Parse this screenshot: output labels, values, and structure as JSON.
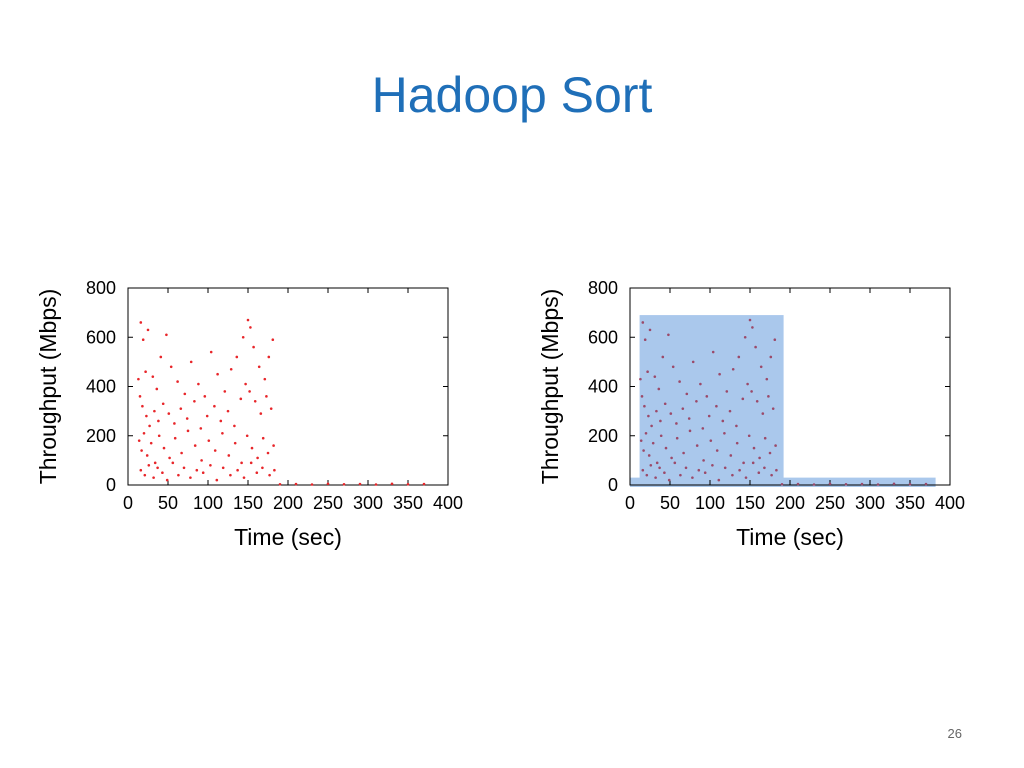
{
  "slide": {
    "title": "Hadoop Sort",
    "page_number": "26"
  },
  "chart_data": [
    {
      "type": "scatter",
      "xlabel": "Time (sec)",
      "ylabel": "Throughput (Mbps)",
      "xlim": [
        0,
        400
      ],
      "ylim": [
        0,
        800
      ],
      "xticks": [
        0,
        50,
        100,
        150,
        200,
        250,
        300,
        350,
        400
      ],
      "yticks": [
        0,
        200,
        400,
        600,
        800
      ],
      "grid": false,
      "series": [
        {
          "color": "#e8262a",
          "points": [
            [
              16,
              660
            ],
            [
              19,
              590
            ],
            [
              22,
              460
            ],
            [
              25,
              630
            ],
            [
              31,
              440
            ],
            [
              36,
              390
            ],
            [
              41,
              520
            ],
            [
              48,
              610
            ],
            [
              54,
              480
            ],
            [
              62,
              420
            ],
            [
              71,
              370
            ],
            [
              79,
              500
            ],
            [
              88,
              410
            ],
            [
              96,
              360
            ],
            [
              104,
              540
            ],
            [
              112,
              450
            ],
            [
              121,
              380
            ],
            [
              129,
              470
            ],
            [
              136,
              520
            ],
            [
              144,
              600
            ],
            [
              150,
              670
            ],
            [
              153,
              640
            ],
            [
              157,
              560
            ],
            [
              164,
              480
            ],
            [
              171,
              430
            ],
            [
              176,
              520
            ],
            [
              181,
              590
            ],
            [
              13,
              430
            ],
            [
              15,
              360
            ],
            [
              18,
              320
            ],
            [
              23,
              280
            ],
            [
              27,
              240
            ],
            [
              33,
              300
            ],
            [
              38,
              260
            ],
            [
              44,
              330
            ],
            [
              51,
              290
            ],
            [
              58,
              250
            ],
            [
              66,
              310
            ],
            [
              74,
              270
            ],
            [
              83,
              340
            ],
            [
              91,
              230
            ],
            [
              99,
              280
            ],
            [
              108,
              320
            ],
            [
              116,
              260
            ],
            [
              125,
              300
            ],
            [
              133,
              240
            ],
            [
              141,
              350
            ],
            [
              147,
              410
            ],
            [
              152,
              380
            ],
            [
              159,
              340
            ],
            [
              166,
              290
            ],
            [
              173,
              360
            ],
            [
              179,
              310
            ],
            [
              14,
              180
            ],
            [
              17,
              140
            ],
            [
              20,
              210
            ],
            [
              24,
              120
            ],
            [
              29,
              170
            ],
            [
              34,
              90
            ],
            [
              39,
              200
            ],
            [
              45,
              150
            ],
            [
              52,
              110
            ],
            [
              59,
              190
            ],
            [
              67,
              130
            ],
            [
              75,
              220
            ],
            [
              84,
              160
            ],
            [
              92,
              100
            ],
            [
              101,
              180
            ],
            [
              109,
              140
            ],
            [
              118,
              210
            ],
            [
              126,
              120
            ],
            [
              134,
              170
            ],
            [
              142,
              90
            ],
            [
              149,
              200
            ],
            [
              155,
              150
            ],
            [
              162,
              110
            ],
            [
              169,
              190
            ],
            [
              175,
              130
            ],
            [
              182,
              160
            ],
            [
              16,
              60
            ],
            [
              21,
              40
            ],
            [
              26,
              80
            ],
            [
              32,
              30
            ],
            [
              37,
              70
            ],
            [
              43,
              50
            ],
            [
              49,
              20
            ],
            [
              56,
              90
            ],
            [
              63,
              40
            ],
            [
              70,
              70
            ],
            [
              78,
              30
            ],
            [
              86,
              60
            ],
            [
              94,
              50
            ],
            [
              103,
              80
            ],
            [
              111,
              20
            ],
            [
              119,
              70
            ],
            [
              128,
              40
            ],
            [
              137,
              60
            ],
            [
              145,
              30
            ],
            [
              154,
              90
            ],
            [
              161,
              50
            ],
            [
              168,
              70
            ],
            [
              177,
              40
            ],
            [
              183,
              60
            ],
            [
              190,
              3
            ],
            [
              210,
              4
            ],
            [
              230,
              2
            ],
            [
              250,
              5
            ],
            [
              270,
              3
            ],
            [
              290,
              4
            ],
            [
              310,
              2
            ],
            [
              330,
              5
            ],
            [
              350,
              3
            ],
            [
              370,
              4
            ]
          ]
        }
      ]
    },
    {
      "type": "scatter",
      "xlabel": "Time (sec)",
      "ylabel": "Throughput (Mbps)",
      "xlim": [
        0,
        400
      ],
      "ylim": [
        0,
        800
      ],
      "xticks": [
        0,
        50,
        100,
        150,
        200,
        250,
        300,
        350,
        400
      ],
      "yticks": [
        0,
        200,
        400,
        600,
        800
      ],
      "grid": false,
      "shaded_regions": [
        {
          "x": [
            12,
            192
          ],
          "y": [
            0,
            690
          ],
          "color": "#aac8ec"
        },
        {
          "x": [
            0,
            382
          ],
          "y": [
            0,
            30
          ],
          "color": "#aac8ec"
        }
      ],
      "series": [
        {
          "color": "#9b4a6a",
          "points": [
            [
              16,
              660
            ],
            [
              19,
              590
            ],
            [
              22,
              460
            ],
            [
              25,
              630
            ],
            [
              31,
              440
            ],
            [
              36,
              390
            ],
            [
              41,
              520
            ],
            [
              48,
              610
            ],
            [
              54,
              480
            ],
            [
              62,
              420
            ],
            [
              71,
              370
            ],
            [
              79,
              500
            ],
            [
              88,
              410
            ],
            [
              96,
              360
            ],
            [
              104,
              540
            ],
            [
              112,
              450
            ],
            [
              121,
              380
            ],
            [
              129,
              470
            ],
            [
              136,
              520
            ],
            [
              144,
              600
            ],
            [
              150,
              670
            ],
            [
              153,
              640
            ],
            [
              157,
              560
            ],
            [
              164,
              480
            ],
            [
              171,
              430
            ],
            [
              176,
              520
            ],
            [
              181,
              590
            ],
            [
              13,
              430
            ],
            [
              15,
              360
            ],
            [
              18,
              320
            ],
            [
              23,
              280
            ],
            [
              27,
              240
            ],
            [
              33,
              300
            ],
            [
              38,
              260
            ],
            [
              44,
              330
            ],
            [
              51,
              290
            ],
            [
              58,
              250
            ],
            [
              66,
              310
            ],
            [
              74,
              270
            ],
            [
              83,
              340
            ],
            [
              91,
              230
            ],
            [
              99,
              280
            ],
            [
              108,
              320
            ],
            [
              116,
              260
            ],
            [
              125,
              300
            ],
            [
              133,
              240
            ],
            [
              141,
              350
            ],
            [
              147,
              410
            ],
            [
              152,
              380
            ],
            [
              159,
              340
            ],
            [
              166,
              290
            ],
            [
              173,
              360
            ],
            [
              179,
              310
            ],
            [
              14,
              180
            ],
            [
              17,
              140
            ],
            [
              20,
              210
            ],
            [
              24,
              120
            ],
            [
              29,
              170
            ],
            [
              34,
              90
            ],
            [
              39,
              200
            ],
            [
              45,
              150
            ],
            [
              52,
              110
            ],
            [
              59,
              190
            ],
            [
              67,
              130
            ],
            [
              75,
              220
            ],
            [
              84,
              160
            ],
            [
              92,
              100
            ],
            [
              101,
              180
            ],
            [
              109,
              140
            ],
            [
              118,
              210
            ],
            [
              126,
              120
            ],
            [
              134,
              170
            ],
            [
              142,
              90
            ],
            [
              149,
              200
            ],
            [
              155,
              150
            ],
            [
              162,
              110
            ],
            [
              169,
              190
            ],
            [
              175,
              130
            ],
            [
              182,
              160
            ],
            [
              16,
              60
            ],
            [
              21,
              40
            ],
            [
              26,
              80
            ],
            [
              32,
              30
            ],
            [
              37,
              70
            ],
            [
              43,
              50
            ],
            [
              49,
              20
            ],
            [
              56,
              90
            ],
            [
              63,
              40
            ],
            [
              70,
              70
            ],
            [
              78,
              30
            ],
            [
              86,
              60
            ],
            [
              94,
              50
            ],
            [
              103,
              80
            ],
            [
              111,
              20
            ],
            [
              119,
              70
            ],
            [
              128,
              40
            ],
            [
              137,
              60
            ],
            [
              145,
              30
            ],
            [
              154,
              90
            ],
            [
              161,
              50
            ],
            [
              168,
              70
            ],
            [
              177,
              40
            ],
            [
              183,
              60
            ],
            [
              190,
              3
            ],
            [
              210,
              4
            ],
            [
              230,
              2
            ],
            [
              250,
              5
            ],
            [
              270,
              3
            ],
            [
              290,
              4
            ],
            [
              310,
              2
            ],
            [
              330,
              5
            ],
            [
              350,
              3
            ],
            [
              370,
              4
            ]
          ]
        }
      ]
    }
  ]
}
